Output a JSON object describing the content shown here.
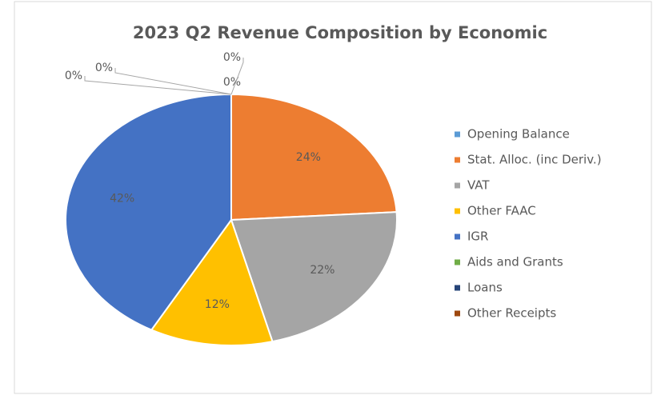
{
  "chart_data": {
    "type": "pie",
    "title": "2023 Q2 Revenue Composition by Economic",
    "categories": [
      "Opening Balance",
      "Stat. Alloc. (inc Deriv.)",
      "VAT",
      "Other FAAC",
      "IGR",
      "Aids and Grants",
      "Loans",
      "Other Receipts"
    ],
    "values": [
      0,
      24,
      22,
      12,
      42,
      0,
      0,
      0
    ],
    "value_labels": [
      "0%",
      "24%",
      "22%",
      "12%",
      "42%",
      "0%",
      "0%",
      "0%"
    ],
    "colors": [
      "#5b9bd5",
      "#ed7d31",
      "#a5a5a5",
      "#ffc000",
      "#4472c4",
      "#70ad47",
      "#264478",
      "#9e480e"
    ],
    "legend": "right"
  }
}
